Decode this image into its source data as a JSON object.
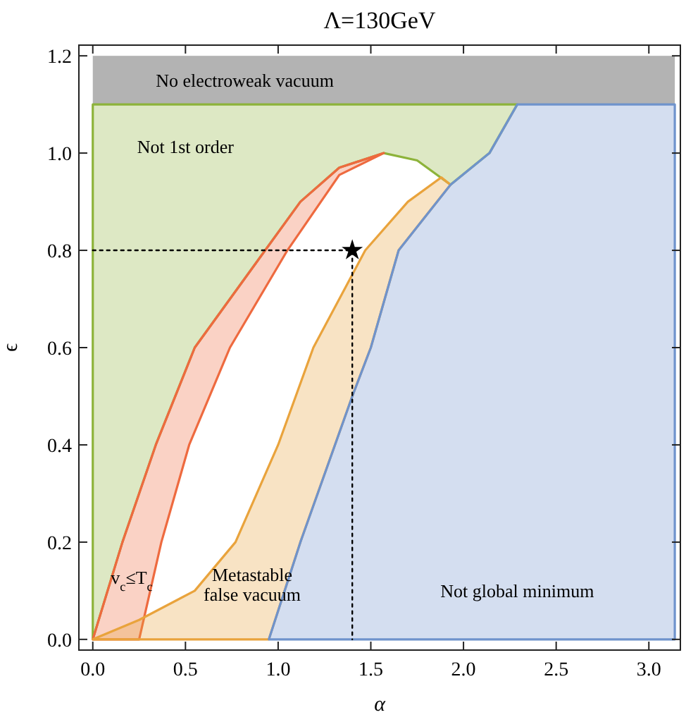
{
  "chart_data": {
    "type": "line",
    "title": "Λ=130GeV",
    "xlabel": "α",
    "ylabel": "ϵ",
    "xlim": [
      -0.075,
      3.17
    ],
    "ylim": [
      -0.022,
      1.222
    ],
    "xticks": [
      {
        "value": 0,
        "label": "0.0"
      },
      0.5,
      {
        "value": 1,
        "label": "1.0"
      },
      1.5,
      {
        "value": 2,
        "label": "2.0"
      },
      2.5,
      {
        "value": 3,
        "label": "3.0"
      }
    ],
    "yticks": [
      {
        "value": 0,
        "label": "0.0"
      },
      0.2,
      0.4,
      0.6,
      0.8,
      {
        "value": 1,
        "label": "1.0"
      },
      1.2
    ],
    "grid": false,
    "bands": [
      {
        "axis": "y",
        "from": 1.1,
        "to": 1.2,
        "label": "No electroweak vacuum",
        "color": "#b3b3b3"
      }
    ],
    "series": [
      {
        "type": "area",
        "color": "#8db33a",
        "x": [
          0,
          0,
          2.29,
          2.14,
          1.93,
          1.75,
          1.57,
          1.33,
          1.12,
          0.93,
          0.55,
          0.34,
          0.16,
          0
        ],
        "values": [
          0,
          1.1,
          1.1,
          1.0,
          0.935,
          0.985,
          1.0,
          0.97,
          0.9,
          0.8,
          0.6,
          0.4,
          0.2,
          0
        ]
      },
      {
        "type": "area",
        "color": "#ee6a3f",
        "x": [
          0,
          0.16,
          0.34,
          0.55,
          0.93,
          1.12,
          1.33,
          1.57,
          1.33,
          1.05,
          0.74,
          0.52,
          0.37,
          0.25,
          0
        ],
        "values": [
          0,
          0.2,
          0.4,
          0.6,
          0.8,
          0.9,
          0.97,
          1.0,
          0.955,
          0.8,
          0.6,
          0.4,
          0.2,
          0,
          0
        ]
      },
      {
        "type": "area",
        "color": "#e9a33c",
        "x": [
          0,
          0.25,
          0.55,
          0.77,
          1.0,
          1.19,
          1.47,
          1.7,
          1.88,
          1.93,
          1.65,
          1.5,
          1.4,
          1.12,
          0.95,
          0
        ],
        "values": [
          0,
          0.04,
          0.1,
          0.2,
          0.4,
          0.6,
          0.8,
          0.9,
          0.95,
          0.935,
          0.8,
          0.6,
          0.5,
          0.2,
          0,
          0
        ]
      },
      {
        "type": "area",
        "color": "#6f93cc",
        "x": [
          0.95,
          3.14,
          3.14,
          2.29,
          2.14,
          1.93,
          1.65,
          1.5,
          1.4,
          1.12,
          0.95
        ],
        "values": [
          0,
          0,
          1.1,
          1.1,
          1.0,
          0.935,
          0.8,
          0.6,
          0.5,
          0.2,
          0
        ]
      },
      {
        "type": "line",
        "color": "#000000",
        "line_style": "dotted",
        "x": [
          0,
          1.4,
          1.4
        ],
        "values": [
          0.8,
          0.8,
          0
        ]
      },
      {
        "type": "scatter",
        "color": "#000000",
        "marker": "star",
        "x": [
          1.4
        ],
        "values": [
          0.8
        ]
      }
    ],
    "annotations": [
      "Not 1st order",
      "v$_{c}$≤T$_{c}$",
      "Metastable\nfalse vacuum",
      "Not global minimum"
    ]
  }
}
